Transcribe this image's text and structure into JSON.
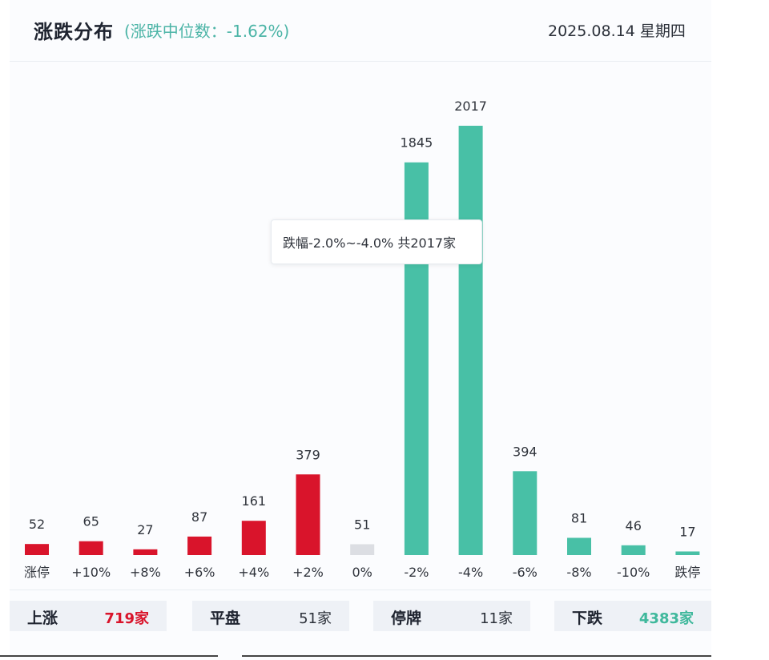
{
  "header": {
    "title": "涨跌分布",
    "median_text": "(涨跌中位数：-1.62%)",
    "date": "2025.08.14 星期四"
  },
  "tooltip": {
    "text": "跌幅-2.0%~-4.0% 共2017家"
  },
  "colors": {
    "up": "#d9142b",
    "flat": "#dcdee3",
    "down": "#48c0a6",
    "median_text": "#4bb4a6"
  },
  "chart_data": {
    "type": "bar",
    "categories": [
      "涨停",
      "+10%",
      "+8%",
      "+6%",
      "+4%",
      "+2%",
      "0%",
      "-2%",
      "-4%",
      "-6%",
      "-8%",
      "-10%",
      "跌停"
    ],
    "values": [
      52,
      65,
      27,
      87,
      161,
      379,
      51,
      1845,
      2017,
      394,
      81,
      46,
      17
    ],
    "groups": [
      "up",
      "up",
      "up",
      "up",
      "up",
      "up",
      "flat",
      "down",
      "down",
      "down",
      "down",
      "down",
      "down"
    ],
    "ylim": [
      0,
      2017
    ]
  },
  "summary": [
    {
      "label": "上涨",
      "value": "719家",
      "kind": "up"
    },
    {
      "label": "平盘",
      "value": "51家",
      "kind": "flat"
    },
    {
      "label": "停牌",
      "value": "11家",
      "kind": "flat"
    },
    {
      "label": "下跌",
      "value": "4383家",
      "kind": "down"
    }
  ]
}
